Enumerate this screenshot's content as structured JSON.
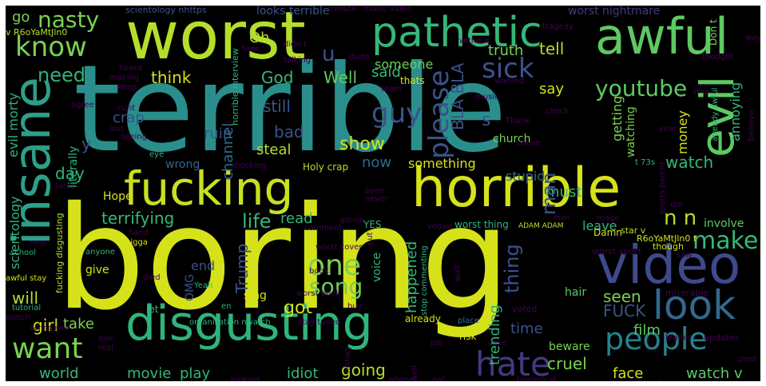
{
  "palette": {
    "background": "#000000",
    "frame": "#ffffff",
    "yellow": "#d7e219",
    "lime": "#b5de2b",
    "green": "#5ec962",
    "light_green": "#7ad151",
    "teal": "#21918c",
    "cyan": "#2a9d8f",
    "blue": "#3b528b",
    "slate": "#31688e",
    "purple": "#440154",
    "violet": "#472d7b"
  },
  "words": {
    "terrible": "terrible",
    "boring": "boring",
    "worst": "worst",
    "horrible": "horrible",
    "fucking": "fucking",
    "awful": "awful",
    "pathetic": "pathetic",
    "disgusting": "disgusting",
    "insane": "insane",
    "video": "video",
    "look": "look",
    "evil": "evil",
    "people": "people",
    "hate": "hate",
    "want": "want",
    "know": "know",
    "youtube": "youtube",
    "guy": "guy",
    "sick": "sick",
    "one": "one",
    "song": "song",
    "make": "make",
    "please": "please",
    "nasty": "nasty",
    "need": "need",
    "think": "think",
    "god": "God",
    "well": "Well",
    "said": "said",
    "bla": "BLA BLA",
    "someone": "someone",
    "truth": "truth",
    "tell": "tell",
    "oh": "Oh",
    "go": "go",
    "u": "u",
    "still": "still",
    "crap": "crap",
    "bad": "bad",
    "channel": "channel",
    "steal": "steal",
    "show": "show",
    "now": "now",
    "something": "something",
    "watch": "watch",
    "day": "day",
    "literally": "literally",
    "evil_morty": "evil morty",
    "terrifying": "terrifying",
    "life": "life",
    "read": "read",
    "n_n": "n n",
    "hope": "Hope",
    "scientology": "scientology",
    "got": "got",
    "trump": "Trump",
    "girl": "girl",
    "take": "take",
    "will": "will",
    "world": "world",
    "movie": "movie",
    "play": "play",
    "idiot": "idiot",
    "going": "going",
    "trending": "trending",
    "happened": "happened",
    "thing": "thing",
    "man": "man",
    "cruel": "cruel",
    "face": "face",
    "watch_v": "watch v",
    "film": "film",
    "seen": "seen",
    "fuck": "FUCK",
    "time": "time",
    "beware": "beware",
    "stupid": "stupid",
    "must": "must",
    "leave": "leave",
    "money": "money",
    "annoying": "annoying",
    "getting": "getting",
    "watching": "watching",
    "say": "say",
    "s": "s",
    "y": "y",
    "ruin": "ruin",
    "wrong": "wrong",
    "holy_crap": "Holy crap",
    "church": "church",
    "involve": "involve",
    "omg": "OMG",
    "end": "end",
    "worst_nightmare": "worst nightmare",
    "scientology_nhttps": "scientology nhttps",
    "looks_terrible": "looks terrible",
    "music_video": "music video",
    "tragedy": "tragedy",
    "dont": "Don t",
    "way": "way",
    "thought": "thought",
    "listen": "listen",
    "stop": "stop",
    "already_awful": "already awful",
    "believe": "believe",
    "year": "year",
    "cause": "cause",
    "thank": "Thank",
    "check": "check",
    "wanted": "wanted",
    "thats": "thats",
    "team": "team",
    "music": "music",
    "minute": "minute",
    "didnt": "didn t",
    "talking": "talking",
    "heard": "heard",
    "making": "making",
    "keep": "keep",
    "agree": "agree",
    "cunt": "cunt",
    "lost": "lost",
    "seeing": "seeing",
    "eye": "eye",
    "sports_parent": "sports parent",
    "t73s": "t 73s",
    "die": "die",
    "made": "made",
    "star_v": "star v",
    "r6o_1": "R6oYaMtJln0 t",
    "r6o_2": "v R6oYaMtJln0",
    "though": "though",
    "saw": "saw",
    "worst_sport": "worst sport",
    "miserable": "miserable",
    "voted": "voted",
    "hair": "hair",
    "trailer": "trailer",
    "updates": "updates",
    "used": "used",
    "much": "much",
    "hysterical": "hysterical",
    "eat": "eat",
    "well2": "well",
    "phone": "phone",
    "cake": "cake",
    "risk": "risk",
    "place": "place",
    "already": "already",
    "job": "job",
    "history": "history",
    "stop_commenting": "stop commenting",
    "voice": "voice",
    "worst_thing": "worst thing",
    "adam_adam": "ADAM ADAM",
    "damn": "Damn",
    "men": "men",
    "vegan": "vegan",
    "yes": "YES",
    "put": "put",
    "never": "never",
    "even": "even",
    "gonna": "gonna",
    "comment": "comment",
    "worst_cover": "worst cover",
    "worst_book": "worst book",
    "book": "book",
    "wait": "wait",
    "buy": "buy",
    "sing": "sing",
    "yeah": "Yeah",
    "en": "en",
    "let": "let",
    "died": "died",
    "give": "give",
    "anyone": "anyone",
    "hand": "hand",
    "nigga": "nigga",
    "help": "help",
    "school": "school",
    "fucking_disgusting": "fucking disgusting",
    "awful_stay": "awful stay",
    "tutorial": "tutorial",
    "bunch": "bunch",
    "boring_now": "boring now",
    "que": "que",
    "real": "real",
    "looking": "looking",
    "organisation": "organisation nwatch",
    "stay_tuned": "stay tuned",
    "shocking": "shocking",
    "horrible_interview": "horrible interview",
    "force": "force",
    "dude": "dude",
    "without": "without",
    "tees": "tees"
  }
}
